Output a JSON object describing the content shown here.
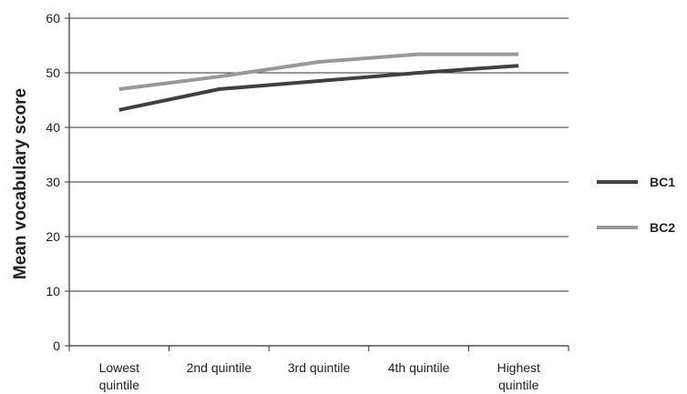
{
  "chart_data": {
    "type": "line",
    "title": "",
    "xlabel": "",
    "ylabel": "Mean vocabulary score",
    "ylim": [
      0,
      60
    ],
    "yticks": [
      0,
      10,
      20,
      30,
      40,
      50,
      60
    ],
    "categories": [
      [
        "Lowest",
        "quintile"
      ],
      [
        "2nd quintile"
      ],
      [
        "3rd quintile"
      ],
      [
        "4th quintile"
      ],
      [
        "Highest",
        "quintile"
      ]
    ],
    "grid": true,
    "legend_position": "right",
    "series": [
      {
        "name": "BC1",
        "color": "#404040",
        "values": [
          43.2,
          47.0,
          48.5,
          50.0,
          51.3
        ]
      },
      {
        "name": "BC2",
        "color": "#999999",
        "values": [
          47.0,
          49.3,
          52.0,
          53.4,
          53.4
        ]
      }
    ]
  }
}
